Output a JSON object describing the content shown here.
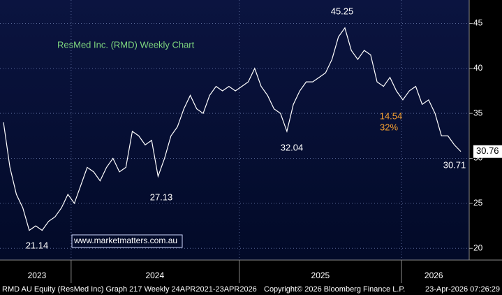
{
  "chart_data": {
    "type": "line",
    "title": "ResMed Inc. (RMD) Weekly Chart",
    "watermark": "www.marketmatters.com.au",
    "series": [
      {
        "name": "RMD AU Equity",
        "color": "#ffffff",
        "values": [
          34,
          29,
          26,
          24.5,
          22,
          22.5,
          22,
          23,
          23.5,
          24.5,
          26,
          25,
          27,
          29,
          28.5,
          27.5,
          29,
          30,
          28.5,
          29,
          33,
          32.5,
          31.5,
          32,
          28,
          30,
          32.5,
          33.5,
          35.5,
          37,
          35.5,
          35,
          37,
          38,
          37.5,
          38,
          37.5,
          38,
          38.5,
          40,
          38,
          37,
          35.5,
          35,
          33,
          36,
          37.5,
          38.5,
          38.5,
          39,
          39.5,
          41,
          43.5,
          44.5,
          42,
          41,
          42,
          41.5,
          38.5,
          38,
          39,
          37.5,
          36.5,
          37.5,
          38,
          36,
          36.5,
          35,
          32.5,
          32.5,
          31.5,
          30.76
        ]
      }
    ],
    "last_price": "30.76",
    "annotations": [
      "45.25",
      "32.04",
      "27.13",
      "21.14",
      "30.71",
      "14.54",
      "32%"
    ],
    "ylim": [
      18.7,
      47.6
    ],
    "yticks": [
      20,
      25,
      30,
      35,
      40,
      45
    ],
    "xticks": [
      {
        "value": 5.2,
        "label": "2023"
      },
      {
        "value": 23.5,
        "label": "2024"
      },
      {
        "value": 49.2,
        "label": "2025"
      },
      {
        "value": 66.8,
        "label": "2026"
      }
    ],
    "year_boundaries": [
      10.5,
      36.6,
      61.8
    ],
    "grid": true,
    "footer": [
      "RMD AU Equity (ResMed Inc) Graph 217 Weekly 24APR2021-23APR2026",
      "Copyright© 2026 Bloomberg Finance L.P.",
      "23-Apr-2026 07:26:29"
    ]
  }
}
